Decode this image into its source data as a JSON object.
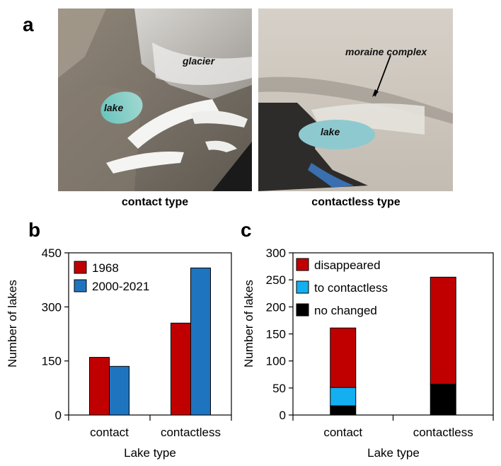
{
  "figure": {
    "panels": {
      "a": "a",
      "b": "b",
      "c": "c"
    },
    "photos": {
      "left": {
        "caption": "contact type",
        "labels": {
          "glacier": "glacier",
          "lake": "lake"
        }
      },
      "right": {
        "caption": "contactless type",
        "labels": {
          "moraine": "moraine complex",
          "lake": "lake"
        }
      }
    }
  },
  "chart_data": [
    {
      "type": "bar",
      "panel": "b",
      "categories": [
        "contact",
        "contactless"
      ],
      "series": [
        {
          "name": "1968",
          "color": "#c00000",
          "values": [
            160,
            255
          ]
        },
        {
          "name": "2000-2021",
          "color": "#1f74c0",
          "values": [
            135,
            408
          ]
        }
      ],
      "xlabel": "Lake type",
      "ylabel": "Number of lakes",
      "ylim": [
        0,
        450
      ],
      "yticks": [
        "0",
        "150",
        "300",
        "450"
      ],
      "grid": false,
      "legend": "top-left"
    },
    {
      "type": "bar",
      "stacked": true,
      "panel": "c",
      "categories": [
        "contact",
        "contactless"
      ],
      "series": [
        {
          "name": "no changed",
          "color": "#000000",
          "values": [
            17,
            57
          ]
        },
        {
          "name": "to contactless",
          "color": "#14aff0",
          "values": [
            34,
            0
          ]
        },
        {
          "name": "disappeared",
          "color": "#c00000",
          "values": [
            110,
            198
          ]
        }
      ],
      "legend_order": [
        "disappeared",
        "to contactless",
        "no changed"
      ],
      "xlabel": "Lake type",
      "ylabel": "Number of lakes",
      "ylim": [
        0,
        300
      ],
      "yticks": [
        "0",
        "50",
        "100",
        "150",
        "200",
        "250",
        "300"
      ],
      "grid": false,
      "legend": "top-left"
    }
  ]
}
